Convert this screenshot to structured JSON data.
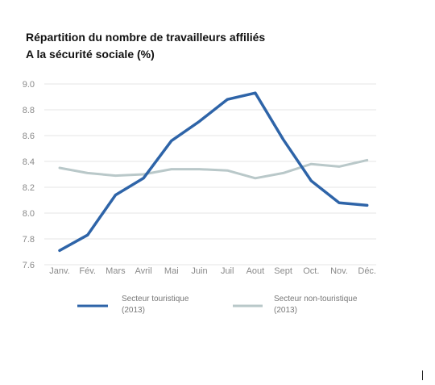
{
  "chart_data": {
    "type": "line",
    "title": [
      "Répartition du nombre de travailleurs affiliés",
      "A la sécurité sociale (%)"
    ],
    "categories": [
      "Janv.",
      "Fév.",
      "Mars",
      "Avril",
      "Mai",
      "Juin",
      "Juil",
      "Aout",
      "Sept",
      "Oct.",
      "Nov.",
      "Déc."
    ],
    "ylim": [
      7.6,
      9.0
    ],
    "yticks": [
      "9.0",
      "8.8",
      "8.6",
      "8.4",
      "8.2",
      "8.0",
      "7.8",
      "7.6"
    ],
    "grid": true,
    "legend_position": "bottom",
    "series": [
      {
        "name": [
          "Secteur touristique",
          "(2013)"
        ],
        "color": "#2e64a8",
        "values": [
          7.71,
          7.83,
          8.14,
          8.27,
          8.56,
          8.71,
          8.88,
          8.93,
          8.57,
          8.25,
          8.08,
          8.06
        ]
      },
      {
        "name": [
          "Secteur non-touristique",
          "(2013)"
        ],
        "color": "#b9c8c9",
        "values": [
          8.35,
          8.31,
          8.29,
          8.3,
          8.34,
          8.34,
          8.33,
          8.27,
          8.31,
          8.38,
          8.36,
          8.41
        ]
      }
    ]
  }
}
